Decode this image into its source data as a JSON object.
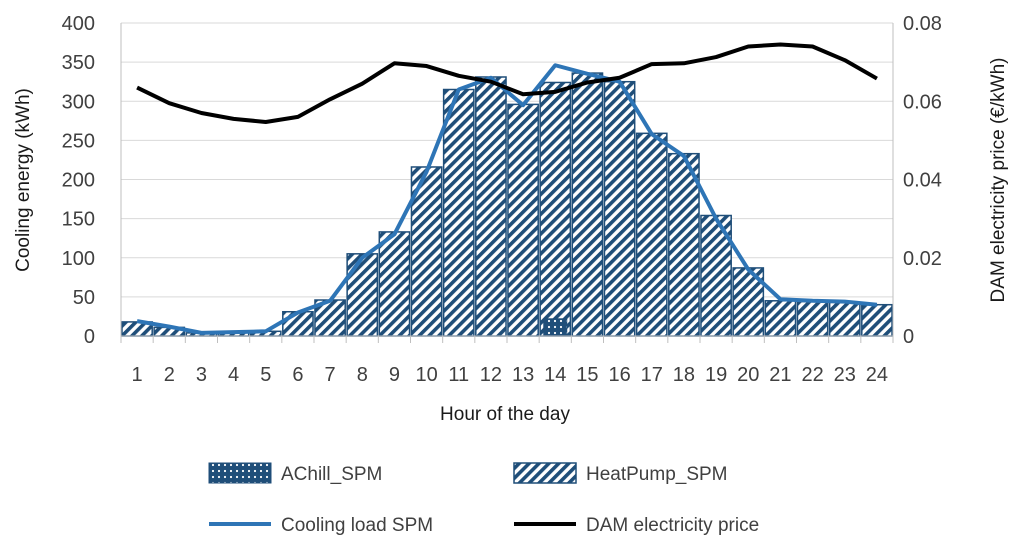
{
  "chart_data": {
    "type": "bar",
    "subtype": "stacked-bar-with-lines",
    "categories": [
      "1",
      "2",
      "3",
      "4",
      "5",
      "6",
      "7",
      "8",
      "9",
      "10",
      "11",
      "12",
      "13",
      "14",
      "15",
      "16",
      "17",
      "18",
      "19",
      "20",
      "21",
      "22",
      "23",
      "24"
    ],
    "xlabel": "Hour of the day",
    "ylabel": "Cooling energy (kWh)",
    "y2label": "DAM electricity price (€/kWh)",
    "ylim": [
      0,
      400
    ],
    "yticks": [
      "0",
      "50",
      "100",
      "150",
      "200",
      "250",
      "300",
      "350",
      "400"
    ],
    "y2lim": [
      0,
      0.08
    ],
    "y2ticks": [
      "0",
      "0.02",
      "0.04",
      "0.06",
      "0.08"
    ],
    "grid": true,
    "legend_position": "bottom",
    "series": [
      {
        "name": "AChill_SPM",
        "kind": "bar",
        "axis": "left",
        "color": "#1f4e79",
        "pattern": "dots",
        "values": [
          0,
          0,
          0,
          0,
          0,
          0,
          0,
          0,
          0,
          0,
          0,
          0,
          0,
          22,
          0,
          0,
          0,
          0,
          0,
          0,
          0,
          0,
          0,
          0
        ]
      },
      {
        "name": "HeatPump_SPM",
        "kind": "bar",
        "axis": "left",
        "color": "#1f4e79",
        "pattern": "diagonal-stripes",
        "values": [
          18,
          11,
          4,
          5,
          6,
          31,
          46,
          105,
          133,
          216,
          315,
          331,
          296,
          324,
          336,
          325,
          259,
          233,
          154,
          87,
          45,
          44,
          43,
          40
        ]
      },
      {
        "name": "Cooling load SPM",
        "kind": "line",
        "axis": "left",
        "color": "#2e75b6",
        "values": [
          19,
          12,
          4,
          5,
          6,
          30,
          45,
          100,
          130,
          210,
          315,
          330,
          295,
          346,
          335,
          325,
          258,
          230,
          150,
          85,
          47,
          45,
          44,
          40
        ]
      },
      {
        "name": "DAM electricity price",
        "kind": "line",
        "axis": "right",
        "color": "#000000",
        "values": [
          0.0635,
          0.0595,
          0.057,
          0.0555,
          0.0547,
          0.056,
          0.0605,
          0.0645,
          0.0697,
          0.069,
          0.0665,
          0.065,
          0.0618,
          0.0624,
          0.0648,
          0.066,
          0.0695,
          0.0697,
          0.0713,
          0.074,
          0.0745,
          0.074,
          0.0705,
          0.0658
        ]
      }
    ]
  }
}
